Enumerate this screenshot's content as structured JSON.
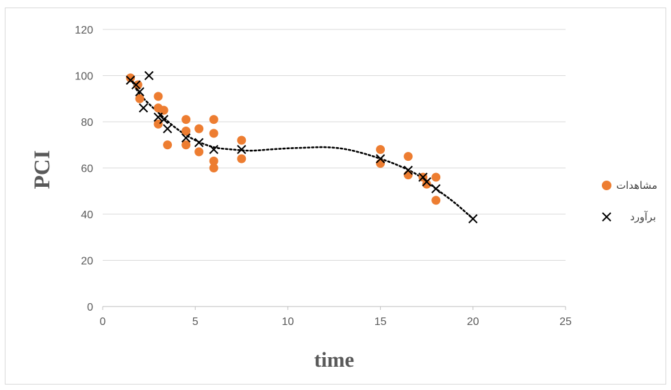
{
  "chart_data": {
    "type": "scatter",
    "title": "",
    "xlabel": "time",
    "ylabel": "PCI",
    "xlim": [
      0,
      25
    ],
    "ylim": [
      0,
      120
    ],
    "xticks": [
      "0",
      "5",
      "10",
      "15",
      "20",
      "25"
    ],
    "yticks": [
      "0",
      "20",
      "40",
      "60",
      "80",
      "100",
      "120"
    ],
    "grid": "horizontal",
    "legend_position": "right",
    "series": [
      {
        "name": "مشاهدات",
        "marker": "circle",
        "color": "#ED7D31",
        "points": [
          [
            1.5,
            99
          ],
          [
            1.9,
            96
          ],
          [
            2.0,
            90
          ],
          [
            3.0,
            91
          ],
          [
            3.0,
            86
          ],
          [
            3.0,
            79
          ],
          [
            3.3,
            85
          ],
          [
            3.5,
            70
          ],
          [
            4.5,
            81
          ],
          [
            4.5,
            76
          ],
          [
            4.5,
            70
          ],
          [
            5.2,
            77
          ],
          [
            5.2,
            67
          ],
          [
            6.0,
            81
          ],
          [
            6.0,
            75
          ],
          [
            6.0,
            63
          ],
          [
            6.0,
            60
          ],
          [
            7.5,
            72
          ],
          [
            7.5,
            64
          ],
          [
            15.0,
            68
          ],
          [
            15.0,
            62
          ],
          [
            16.5,
            65
          ],
          [
            16.5,
            57
          ],
          [
            17.3,
            56
          ],
          [
            17.5,
            53
          ],
          [
            18.0,
            56
          ],
          [
            18.0,
            46
          ]
        ]
      },
      {
        "name": "برآورد",
        "marker": "x",
        "color": "#000000",
        "points": [
          [
            1.5,
            98
          ],
          [
            1.8,
            96
          ],
          [
            2.0,
            93
          ],
          [
            2.2,
            86
          ],
          [
            2.5,
            100
          ],
          [
            3.0,
            82
          ],
          [
            3.3,
            81
          ],
          [
            3.5,
            77
          ],
          [
            4.5,
            73
          ],
          [
            5.2,
            71
          ],
          [
            6.0,
            68
          ],
          [
            7.5,
            68
          ],
          [
            15.0,
            64
          ],
          [
            16.5,
            59
          ],
          [
            17.3,
            56
          ],
          [
            17.5,
            54
          ],
          [
            18.0,
            51
          ],
          [
            20.0,
            38
          ]
        ]
      }
    ],
    "trendline": {
      "style": "dotted",
      "color": "#000000",
      "points": [
        [
          1.5,
          99
        ],
        [
          2,
          92
        ],
        [
          3,
          84
        ],
        [
          4,
          77
        ],
        [
          5,
          72
        ],
        [
          6,
          69
        ],
        [
          7,
          68
        ],
        [
          8,
          67.5
        ],
        [
          9,
          68
        ],
        [
          10,
          68.5
        ],
        [
          11,
          68.8
        ],
        [
          12,
          69
        ],
        [
          13,
          68.3
        ],
        [
          14,
          66.5
        ],
        [
          15,
          64
        ],
        [
          16,
          61
        ],
        [
          17,
          57
        ],
        [
          18,
          51
        ],
        [
          19,
          45
        ],
        [
          20,
          38
        ]
      ]
    },
    "colors": {
      "grid": "#d9d9d9",
      "axis": "#bfbfbf",
      "text": "#595959"
    }
  }
}
